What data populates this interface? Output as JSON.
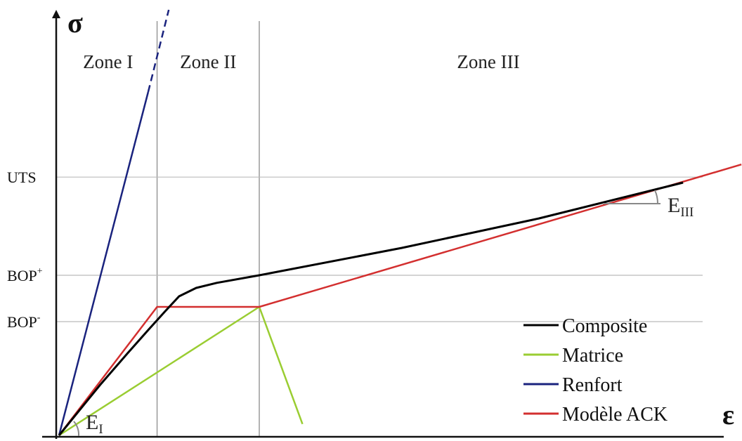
{
  "chart_data": {
    "type": "line",
    "title": "",
    "ylabel": "σ",
    "xlabel": "ε",
    "xlim": [
      0,
      10
    ],
    "ylim": [
      0,
      10
    ],
    "grid": false,
    "legend_placement": "bottom-right",
    "zones": [
      {
        "name": "Zone I",
        "x_from": 0,
        "x_to": 1.43
      },
      {
        "name": "Zone II",
        "x_from": 1.43,
        "x_to": 2.92
      },
      {
        "name": "Zone III",
        "x_from": 2.92,
        "x_to": 10
      }
    ],
    "zone_boundaries": [
      1.43,
      2.92
    ],
    "y_levels": [
      {
        "label": "UTS",
        "y": 6.13
      },
      {
        "label": "BOP",
        "sup": "+",
        "y": 3.8
      },
      {
        "label": "BOP",
        "sup": "-",
        "y": 2.7
      }
    ],
    "series": [
      {
        "name": "Composite",
        "color": "#000000",
        "stroke": "solid",
        "x": [
          0,
          0.6,
          1.0,
          1.3,
          1.55,
          1.75,
          2.0,
          2.3,
          2.92,
          5.0,
          7.0,
          9.1
        ],
        "y": [
          0,
          1.2,
          1.95,
          2.5,
          2.95,
          3.3,
          3.5,
          3.62,
          3.8,
          4.45,
          5.15,
          6.0
        ]
      },
      {
        "name": "Matrice",
        "color": "#9acd32",
        "stroke": "solid",
        "x": [
          0,
          2.92,
          3.55
        ],
        "y": [
          0,
          3.05,
          0.27
        ]
      },
      {
        "name": "Renfort",
        "color": "#1a237e",
        "stroke": "solid",
        "dashed_from_x": 1.3,
        "x": [
          0,
          1.3,
          1.6
        ],
        "y": [
          0,
          8.15,
          10.1
        ]
      },
      {
        "name": "Modèle ACK",
        "color": "#d32f2f",
        "stroke": "solid",
        "x": [
          0,
          1.43,
          2.92,
          9.95
        ],
        "y": [
          0,
          3.05,
          3.05,
          6.43
        ]
      }
    ],
    "annotations": [
      {
        "label": "E",
        "sub": "I",
        "at": "initial slope"
      },
      {
        "label": "E",
        "sub": "III",
        "at": "final slope"
      }
    ]
  }
}
